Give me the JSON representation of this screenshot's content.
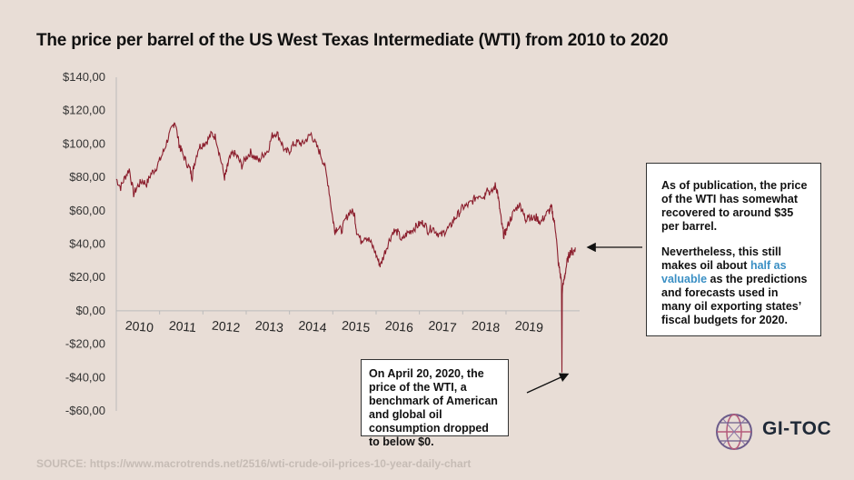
{
  "title": "The price per barrel of the US West Texas Intermediate (WTI) from 2010 to 2020",
  "source_label": "SOURCE:",
  "source_url": "https://www.macrotrends.net/2516/wti-crude-oil-prices-10-year-daily-chart",
  "logo_text": "GI-TOC",
  "callouts": {
    "right_p1": "As of publication, the price of the WTI has somewhat recovered to around $35 per barrel.",
    "right_p2_before": "Nevertheless, this still makes oil about ",
    "right_p2_highlight": "half as valuable",
    "right_p2_after": " as the predictions and forecasts used in many oil exporting states’ fiscal budgets for 2020.",
    "bottom": "On April 20, 2020, the price of the WTI, a benchmark of American and global oil consumption dropped to below $0."
  },
  "colors": {
    "line": "#8b1e2d",
    "background": "#e8ddd6",
    "highlight": "#3a8fc4"
  },
  "chart_data": {
    "type": "line",
    "title": "The price per barrel of the US West Texas Intermediate (WTI) from 2010 to 2020",
    "ylim": [
      -60,
      140
    ],
    "y_ticks": [
      140,
      120,
      100,
      80,
      60,
      40,
      20,
      0,
      -20,
      -40,
      -60
    ],
    "y_tick_labels": [
      "$140,00",
      "$120,00",
      "$100,00",
      "$80,00",
      "$60,00",
      "$40,00",
      "$20,00",
      "$0,00",
      "-$20,00",
      "-$40,00",
      "-$60,00"
    ],
    "x_tick_labels": [
      "2010",
      "2011",
      "2012",
      "2013",
      "2014",
      "2015",
      "2016",
      "2017",
      "2018",
      "2019"
    ],
    "xlim": [
      2010,
      2020.7
    ],
    "grid": false,
    "series": [
      {
        "values": [
          [
            2010.0,
            79
          ],
          [
            2010.1,
            74
          ],
          [
            2010.2,
            80
          ],
          [
            2010.3,
            85
          ],
          [
            2010.4,
            70
          ],
          [
            2010.5,
            75
          ],
          [
            2010.6,
            78
          ],
          [
            2010.7,
            76
          ],
          [
            2010.8,
            82
          ],
          [
            2010.9,
            85
          ],
          [
            2011.0,
            90
          ],
          [
            2011.1,
            96
          ],
          [
            2011.2,
            104
          ],
          [
            2011.3,
            110
          ],
          [
            2011.35,
            114
          ],
          [
            2011.45,
            100
          ],
          [
            2011.5,
            96
          ],
          [
            2011.6,
            90
          ],
          [
            2011.7,
            85
          ],
          [
            2011.75,
            80
          ],
          [
            2011.8,
            88
          ],
          [
            2011.9,
            98
          ],
          [
            2012.0,
            100
          ],
          [
            2012.1,
            102
          ],
          [
            2012.2,
            106
          ],
          [
            2012.3,
            104
          ],
          [
            2012.4,
            92
          ],
          [
            2012.5,
            80
          ],
          [
            2012.55,
            84
          ],
          [
            2012.6,
            90
          ],
          [
            2012.7,
            95
          ],
          [
            2012.8,
            92
          ],
          [
            2012.9,
            87
          ],
          [
            2013.0,
            92
          ],
          [
            2013.1,
            95
          ],
          [
            2013.2,
            92
          ],
          [
            2013.3,
            90
          ],
          [
            2013.4,
            94
          ],
          [
            2013.5,
            96
          ],
          [
            2013.6,
            105
          ],
          [
            2013.7,
            107
          ],
          [
            2013.8,
            102
          ],
          [
            2013.9,
            95
          ],
          [
            2014.0,
            96
          ],
          [
            2014.1,
            100
          ],
          [
            2014.2,
            101
          ],
          [
            2014.3,
            100
          ],
          [
            2014.4,
            103
          ],
          [
            2014.5,
            106
          ],
          [
            2014.6,
            100
          ],
          [
            2014.7,
            95
          ],
          [
            2014.8,
            88
          ],
          [
            2014.9,
            75
          ],
          [
            2015.0,
            55
          ],
          [
            2015.05,
            48
          ],
          [
            2015.1,
            50
          ],
          [
            2015.2,
            48
          ],
          [
            2015.3,
            55
          ],
          [
            2015.4,
            60
          ],
          [
            2015.5,
            58
          ],
          [
            2015.55,
            48
          ],
          [
            2015.65,
            42
          ],
          [
            2015.75,
            45
          ],
          [
            2015.85,
            42
          ],
          [
            2015.95,
            37
          ],
          [
            2016.05,
            30
          ],
          [
            2016.1,
            27
          ],
          [
            2016.2,
            35
          ],
          [
            2016.3,
            42
          ],
          [
            2016.4,
            48
          ],
          [
            2016.5,
            47
          ],
          [
            2016.6,
            42
          ],
          [
            2016.7,
            46
          ],
          [
            2016.8,
            48
          ],
          [
            2016.9,
            50
          ],
          [
            2017.0,
            52
          ],
          [
            2017.1,
            53
          ],
          [
            2017.2,
            48
          ],
          [
            2017.3,
            50
          ],
          [
            2017.4,
            47
          ],
          [
            2017.5,
            45
          ],
          [
            2017.6,
            48
          ],
          [
            2017.7,
            50
          ],
          [
            2017.8,
            55
          ],
          [
            2017.9,
            58
          ],
          [
            2018.0,
            62
          ],
          [
            2018.1,
            63
          ],
          [
            2018.2,
            65
          ],
          [
            2018.3,
            68
          ],
          [
            2018.4,
            70
          ],
          [
            2018.5,
            68
          ],
          [
            2018.55,
            74
          ],
          [
            2018.65,
            70
          ],
          [
            2018.75,
            75
          ],
          [
            2018.8,
            72
          ],
          [
            2018.85,
            62
          ],
          [
            2018.9,
            52
          ],
          [
            2018.95,
            45
          ],
          [
            2019.0,
            48
          ],
          [
            2019.1,
            55
          ],
          [
            2019.2,
            60
          ],
          [
            2019.3,
            64
          ],
          [
            2019.4,
            60
          ],
          [
            2019.45,
            53
          ],
          [
            2019.5,
            58
          ],
          [
            2019.6,
            55
          ],
          [
            2019.7,
            56
          ],
          [
            2019.8,
            53
          ],
          [
            2019.9,
            57
          ],
          [
            2020.0,
            60
          ],
          [
            2020.05,
            62
          ],
          [
            2020.1,
            55
          ],
          [
            2020.15,
            48
          ],
          [
            2020.2,
            30
          ],
          [
            2020.25,
            22
          ],
          [
            2020.28,
            18
          ],
          [
            2020.29,
            -37
          ],
          [
            2020.3,
            12
          ],
          [
            2020.35,
            20
          ],
          [
            2020.4,
            28
          ],
          [
            2020.45,
            33
          ],
          [
            2020.5,
            36
          ],
          [
            2020.55,
            35
          ],
          [
            2020.6,
            38
          ]
        ]
      }
    ]
  }
}
